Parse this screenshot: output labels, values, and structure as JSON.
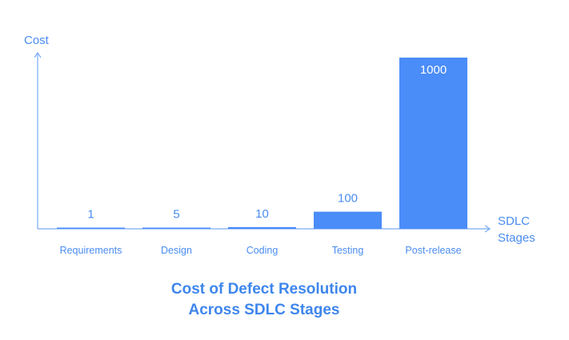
{
  "chart_data": {
    "type": "bar",
    "title_lines": [
      "Cost of Defect Resolution",
      "Across SDLC Stages"
    ],
    "ylabel": "Cost",
    "xlabel_lines": [
      "SDLC",
      "Stages"
    ],
    "categories": [
      "Requirements",
      "Design",
      "Coding",
      "Testing",
      "Post-release"
    ],
    "values": [
      1,
      5,
      10,
      100,
      1000
    ],
    "data_labels": [
      "1",
      "5",
      "10",
      "100",
      "1000"
    ],
    "ylim": [
      0,
      1000
    ],
    "grid": false,
    "colors": {
      "bar": "#4a8cf8",
      "axis": "#7aaaf5",
      "text": "#4a8cf0"
    }
  }
}
